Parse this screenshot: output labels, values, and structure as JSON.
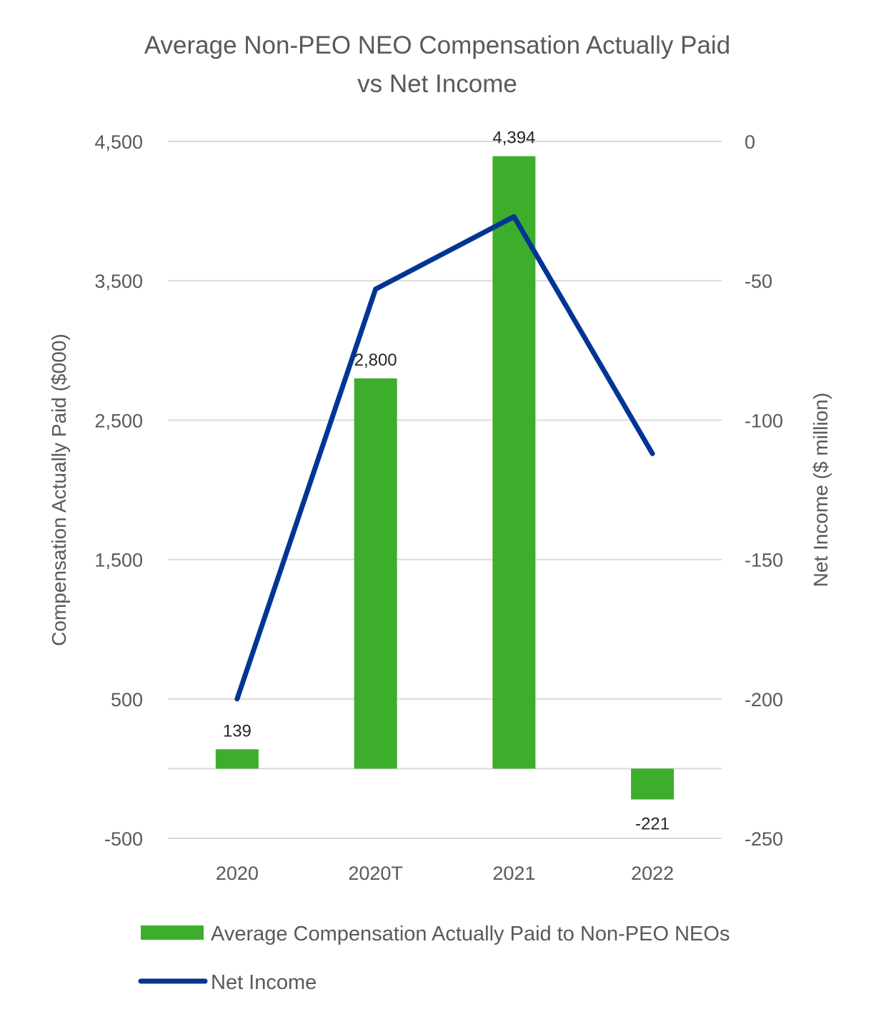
{
  "chart_data": {
    "type": "bar+line",
    "title_lines": [
      "Average Non-PEO NEO Compensation Actually Paid",
      "vs Net Income"
    ],
    "categories": [
      "2020",
      "2020T",
      "2021",
      "2022"
    ],
    "series": [
      {
        "name": "Average Compensation Actually Paid to Non-PEO NEOs",
        "type": "bar",
        "axis": "left",
        "values": [
          139,
          2800,
          4394,
          -221
        ],
        "data_labels": [
          "139",
          "2,800",
          "4,394",
          "-221"
        ],
        "color": "#3DAE2B"
      },
      {
        "name": "Net Income",
        "type": "line",
        "axis": "right",
        "values": [
          -200,
          -53,
          -27,
          -112
        ],
        "color": "#003594"
      }
    ],
    "y_left": {
      "label": "Compensation Actually Paid ($000)",
      "ylim": [
        -500,
        4500
      ],
      "ticks": [
        4500,
        3500,
        2500,
        1500,
        500,
        -500
      ],
      "tick_labels": [
        "4,500",
        "3,500",
        "2,500",
        "1,500",
        "500",
        "-500"
      ]
    },
    "y_right": {
      "label": "Net Income ($ million)",
      "ylim": [
        -250,
        0
      ],
      "ticks": [
        0,
        -50,
        -100,
        -150,
        -200,
        -250
      ],
      "tick_labels": [
        "0",
        "-50",
        "-100",
        "-150",
        "-200",
        "-250"
      ]
    },
    "grid": true,
    "legend_position": "bottom"
  }
}
